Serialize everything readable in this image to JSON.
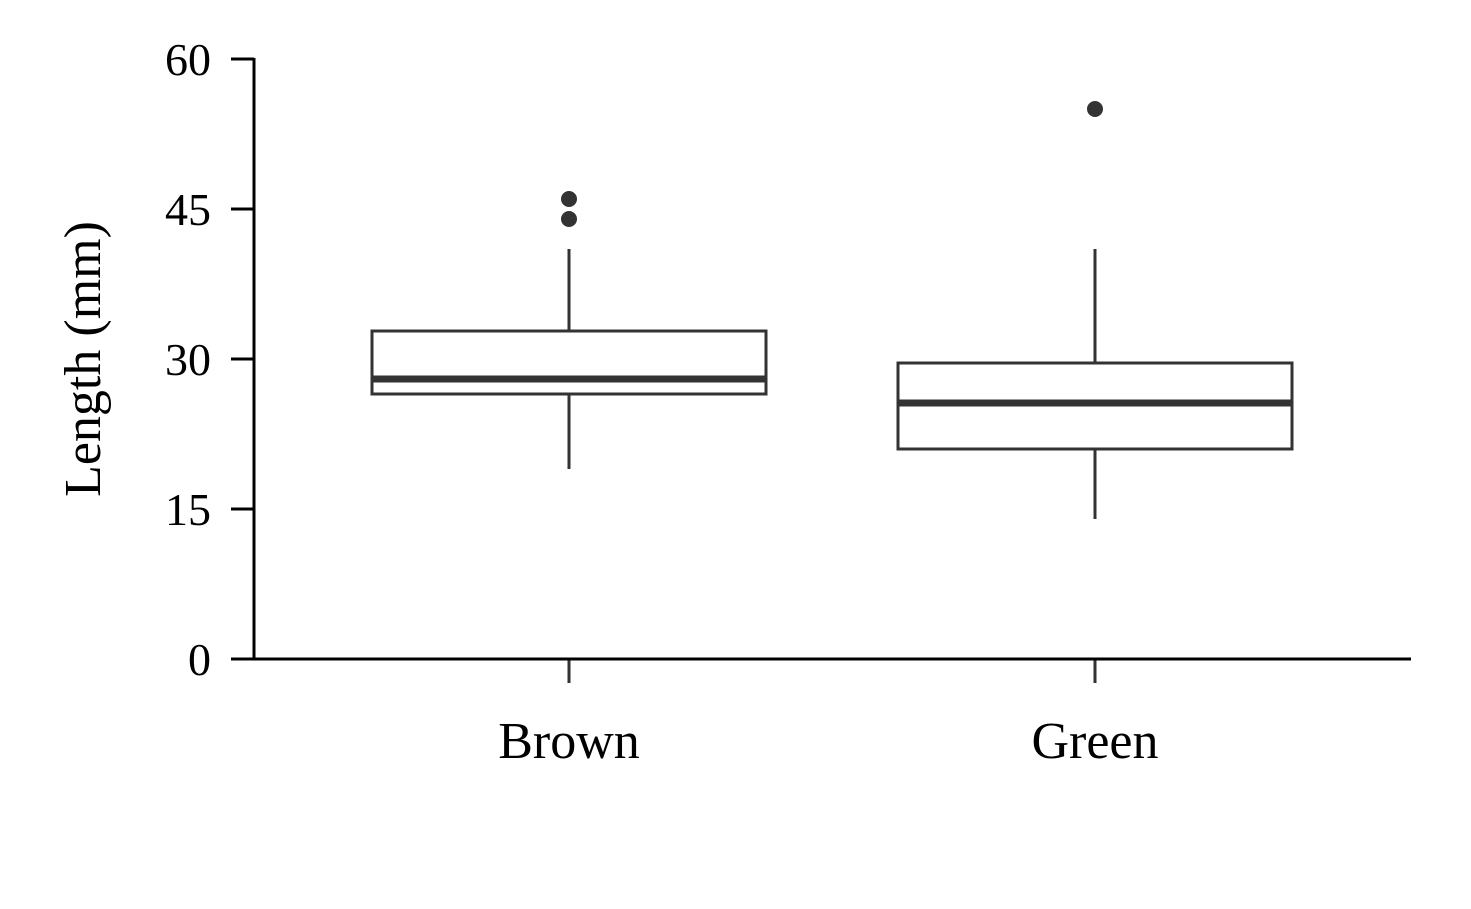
{
  "chart_data": {
    "type": "boxplot",
    "ylabel": "Length (mm)",
    "xlabel": "",
    "ylim": [
      0,
      60
    ],
    "yticks": [
      "0",
      "15",
      "30",
      "45",
      "60"
    ],
    "grid": false,
    "colors": {
      "box_stroke": "#333333",
      "axis": "#000000",
      "box_fill": "#ffffff"
    },
    "categories": [
      "Brown",
      "Green"
    ],
    "boxes": [
      {
        "category": "Brown",
        "whisker_low": 19,
        "q1": 26.5,
        "median": 28,
        "q3": 32.8,
        "whisker_high": 41,
        "outliers": [
          44,
          46
        ]
      },
      {
        "category": "Green",
        "whisker_low": 14,
        "q1": 21,
        "median": 25.6,
        "q3": 29.6,
        "whisker_high": 41,
        "outliers": [
          55
        ]
      }
    ]
  }
}
